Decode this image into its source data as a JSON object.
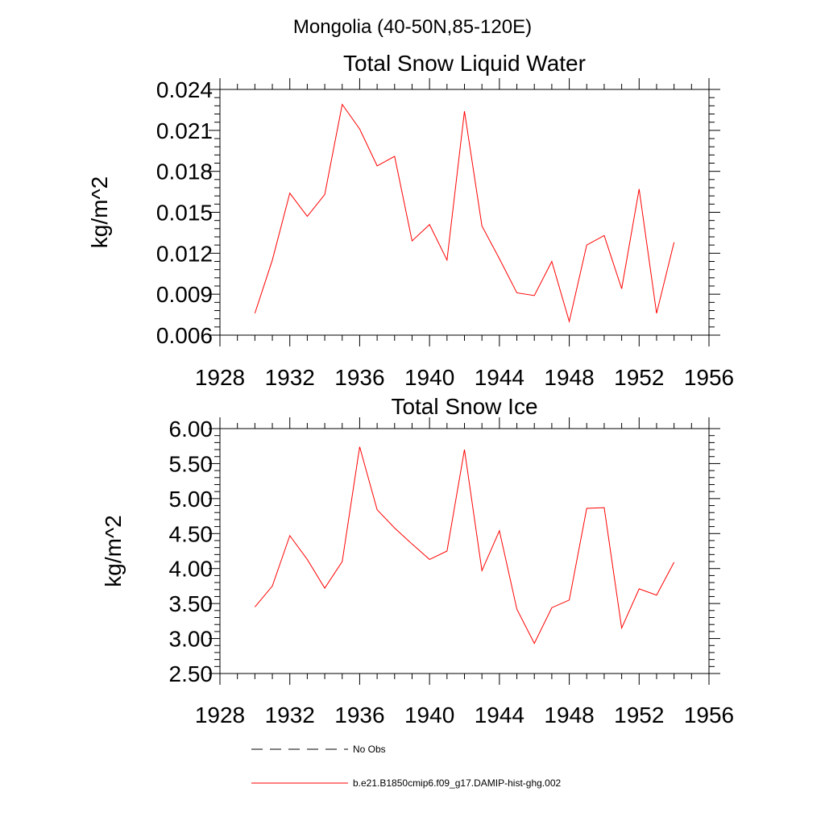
{
  "figure": {
    "title": "Mongolia (40-50N,85-120E)"
  },
  "legend": {
    "entries": [
      {
        "label": "No Obs",
        "color": "#000000",
        "style": "dashed"
      },
      {
        "label": "b.e21.B1850cmip6.f09_g17.DAMIP-hist-ghg.002",
        "color": "#ff0000",
        "style": "solid"
      }
    ]
  },
  "chart_data": [
    {
      "type": "line",
      "title": "Total Snow Liquid Water",
      "xlabel": "",
      "ylabel": "kg/m^2",
      "xlim": [
        1928,
        1956
      ],
      "ylim": [
        0.006,
        0.024
      ],
      "xticks": [
        "1928",
        "1932",
        "1936",
        "1940",
        "1944",
        "1948",
        "1952",
        "1956"
      ],
      "yticks": [
        "0.006",
        "0.009",
        "0.012",
        "0.015",
        "0.018",
        "0.021",
        "0.024"
      ],
      "x": [
        1930,
        1931,
        1932,
        1933,
        1934,
        1935,
        1936,
        1937,
        1938,
        1939,
        1940,
        1941,
        1942,
        1943,
        1944,
        1945,
        1946,
        1947,
        1948,
        1949,
        1950,
        1951,
        1952,
        1953,
        1954
      ],
      "series": [
        {
          "name": "b.e21.B1850cmip6.f09_g17.DAMIP-hist-ghg.002",
          "color": "#ff0000",
          "values": [
            0.0076,
            0.0115,
            0.0164,
            0.0147,
            0.0163,
            0.0229,
            0.0211,
            0.0184,
            0.0191,
            0.0129,
            0.0141,
            0.0115,
            0.0224,
            0.014,
            0.0116,
            0.0091,
            0.0089,
            0.0114,
            0.007,
            0.0126,
            0.0133,
            0.0094,
            0.0167,
            0.0076,
            0.0128
          ]
        }
      ],
      "grid": false
    },
    {
      "type": "line",
      "title": "Total Snow Ice",
      "xlabel": "",
      "ylabel": "kg/m^2",
      "xlim": [
        1928,
        1956
      ],
      "ylim": [
        2.5,
        6.0
      ],
      "xticks": [
        "1928",
        "1932",
        "1936",
        "1940",
        "1944",
        "1948",
        "1952",
        "1956"
      ],
      "yticks": [
        "2.50",
        "3.00",
        "3.50",
        "4.00",
        "4.50",
        "5.00",
        "5.50",
        "6.00"
      ],
      "x": [
        1930,
        1931,
        1932,
        1933,
        1934,
        1935,
        1936,
        1937,
        1938,
        1939,
        1940,
        1941,
        1942,
        1943,
        1944,
        1945,
        1946,
        1947,
        1948,
        1949,
        1950,
        1951,
        1952,
        1953,
        1954
      ],
      "series": [
        {
          "name": "b.e21.B1850cmip6.f09_g17.DAMIP-hist-ghg.002",
          "color": "#ff0000",
          "values": [
            3.45,
            3.75,
            4.47,
            4.13,
            3.72,
            4.1,
            5.74,
            4.84,
            4.58,
            4.35,
            4.13,
            4.25,
            5.7,
            3.97,
            4.54,
            3.42,
            2.93,
            3.44,
            3.55,
            4.86,
            4.87,
            3.15,
            3.71,
            3.62,
            4.09
          ]
        }
      ],
      "grid": false
    }
  ]
}
